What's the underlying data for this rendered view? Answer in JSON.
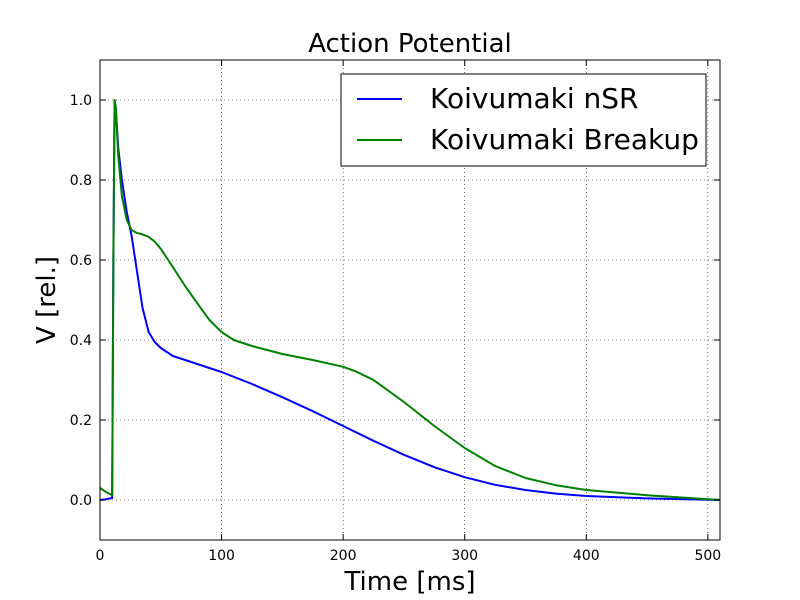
{
  "chart_data": {
    "type": "line",
    "title": "Action Potential",
    "xlabel": "Time [ms]",
    "ylabel": "V [rel.]",
    "xlim": [
      0,
      510
    ],
    "ylim": [
      -0.1,
      1.1
    ],
    "xticks": [
      0,
      100,
      200,
      300,
      400,
      500
    ],
    "xtick_labels": [
      "0",
      "100",
      "200",
      "300",
      "400",
      "500"
    ],
    "yticks": [
      0.0,
      0.2,
      0.4,
      0.6,
      0.8,
      1.0
    ],
    "ytick_labels": [
      "0.0",
      "0.2",
      "0.4",
      "0.6",
      "0.8",
      "1.0"
    ],
    "grid": true,
    "legend_position": "top-right",
    "series": [
      {
        "name": "Koivumaki nSR",
        "color": "#0000ff",
        "x": [
          0,
          5,
          10,
          11,
          12,
          13,
          15,
          18,
          22,
          26,
          30,
          35,
          40,
          45,
          50,
          60,
          70,
          80,
          100,
          125,
          150,
          175,
          200,
          225,
          250,
          275,
          300,
          325,
          350,
          375,
          400,
          450,
          510
        ],
        "y": [
          0.0,
          0.002,
          0.005,
          0.6,
          1.0,
          0.98,
          0.88,
          0.8,
          0.72,
          0.66,
          0.58,
          0.48,
          0.42,
          0.395,
          0.38,
          0.36,
          0.35,
          0.34,
          0.32,
          0.29,
          0.257,
          0.222,
          0.185,
          0.148,
          0.113,
          0.082,
          0.057,
          0.038,
          0.025,
          0.016,
          0.01,
          0.004,
          0.0
        ]
      },
      {
        "name": "Koivumaki Breakup",
        "color": "#008000",
        "x": [
          0,
          5,
          10,
          11,
          12,
          13,
          15,
          18,
          22,
          26,
          30,
          35,
          40,
          45,
          50,
          60,
          70,
          80,
          90,
          100,
          110,
          125,
          150,
          175,
          200,
          210,
          225,
          250,
          275,
          300,
          325,
          350,
          375,
          400,
          450,
          510
        ],
        "y": [
          0.03,
          0.02,
          0.012,
          0.6,
          1.0,
          0.98,
          0.86,
          0.76,
          0.7,
          0.675,
          0.668,
          0.664,
          0.658,
          0.646,
          0.628,
          0.582,
          0.535,
          0.492,
          0.45,
          0.42,
          0.4,
          0.385,
          0.365,
          0.35,
          0.333,
          0.322,
          0.3,
          0.245,
          0.185,
          0.13,
          0.085,
          0.055,
          0.037,
          0.025,
          0.012,
          0.0
        ]
      }
    ]
  }
}
